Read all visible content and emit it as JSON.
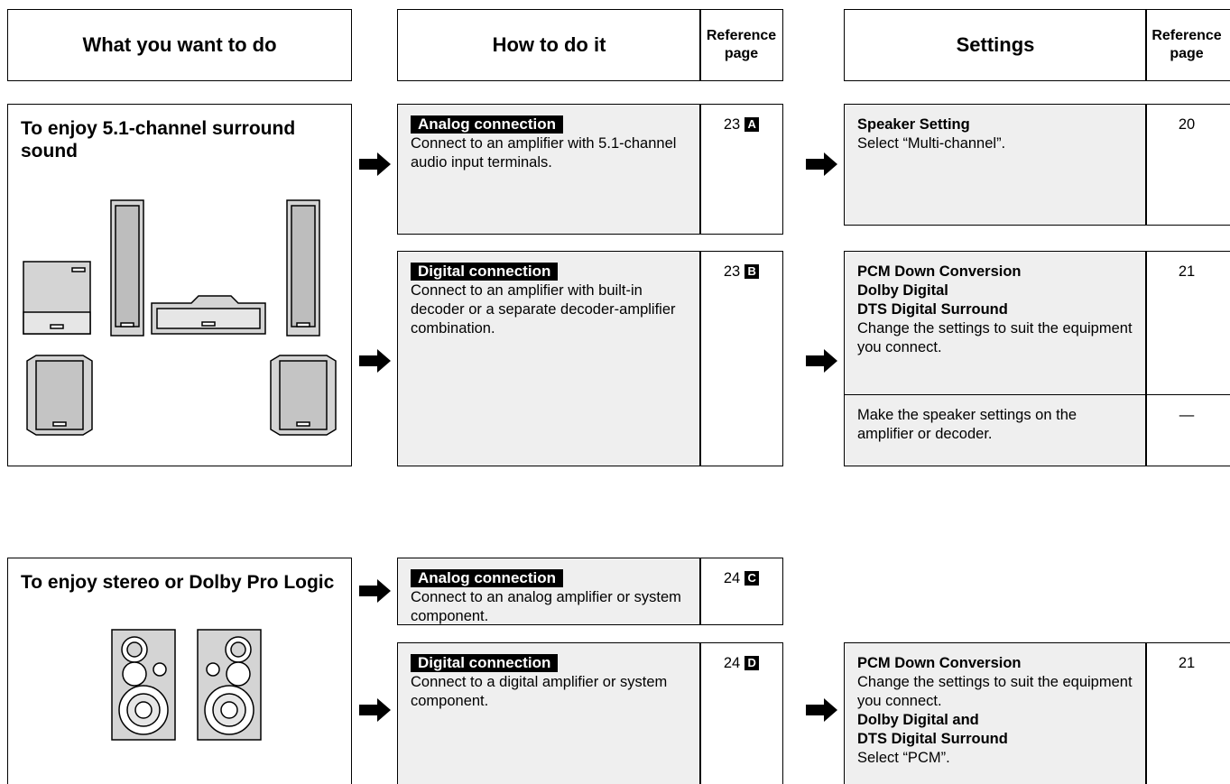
{
  "header": {
    "what": "What you want to do",
    "how": "How to do it",
    "how_ref": "Reference page",
    "settings": "Settings",
    "settings_ref": "Reference page"
  },
  "sections": [
    {
      "goal": "To enjoy 5.1-channel surround sound",
      "methods": [
        {
          "label": "Analog connection",
          "text": "Connect to an amplifier with 5.1-channel audio input terminals.",
          "ref_page": 23,
          "ref_letter": "A",
          "settings": [
            {
              "parts": [
                {
                  "heading": "Speaker Setting"
                },
                {
                  "text": "Select “Multi-channel”."
                }
              ],
              "ref_page": 20
            }
          ]
        },
        {
          "label": "Digital connection",
          "text": "Connect to an amplifier with built-in decoder or a separate decoder-amplifier combination.",
          "ref_page": 23,
          "ref_letter": "B",
          "settings": [
            {
              "parts": [
                {
                  "heading": "PCM Down Conversion"
                },
                {
                  "heading": "Dolby Digital"
                },
                {
                  "heading": "DTS Digital Surround"
                },
                {
                  "text": "Change the settings to suit the equipment you connect."
                }
              ],
              "ref_page": 21
            },
            {
              "parts": [
                {
                  "text": "Make the speaker settings on the amplifier or decoder."
                }
              ],
              "ref_page": "—"
            }
          ]
        }
      ]
    },
    {
      "goal": "To enjoy stereo or Dolby Pro Logic",
      "methods": [
        {
          "label": "Analog connection",
          "text": "Connect to an analog amplifier or system component.",
          "ref_page": 24,
          "ref_letter": "C",
          "settings": []
        },
        {
          "label": "Digital connection",
          "text": "Connect to a digital amplifier or system component.",
          "ref_page": 24,
          "ref_letter": "D",
          "settings": [
            {
              "parts": [
                {
                  "heading": "PCM Down Conversion"
                },
                {
                  "text": "Change the settings to suit the equipment you connect."
                },
                {
                  "heading": "Dolby Digital and"
                },
                {
                  "heading": "DTS Digital Surround"
                },
                {
                  "text": "Select  “PCM”."
                }
              ],
              "ref_page": 21
            }
          ]
        }
      ]
    }
  ]
}
